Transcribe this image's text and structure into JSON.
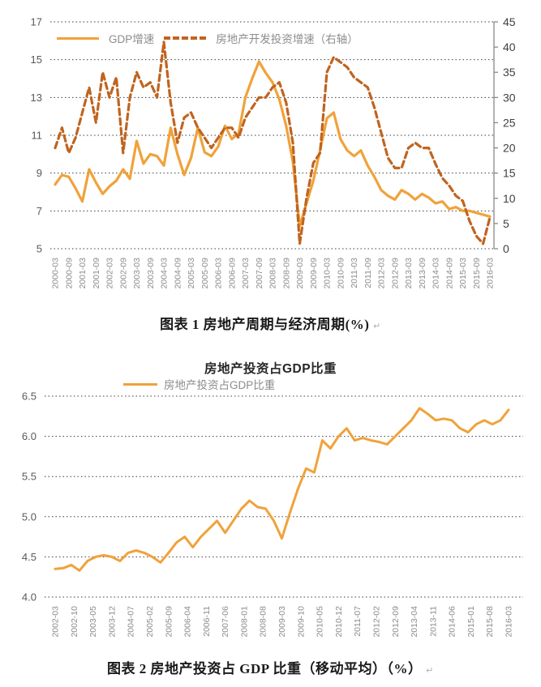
{
  "meta": {
    "return_mark": "↵"
  },
  "colors": {
    "gdp_line": "#F0A23A",
    "investment_line": "#C0641F",
    "grid": "#3d3d3d",
    "axis_text": "#595959",
    "x_tick_text": "#8c8c8c",
    "right_axis_text": "#404040",
    "legend_text": "#8c8c8c",
    "caption_text": "#1a1a1a",
    "background": "#ffffff"
  },
  "chart_data": [
    {
      "type": "line",
      "caption": "图表 1 房地产周期与经济周期(%)",
      "legend_position": "top-left-inside",
      "grid": "dashed-horizontal",
      "left_axis": {
        "min": 5,
        "max": 17,
        "ticks": [
          17,
          15,
          13,
          11,
          9,
          7,
          5
        ]
      },
      "right_axis": {
        "min": 0,
        "max": 45,
        "ticks": [
          45,
          40,
          35,
          30,
          25,
          20,
          15,
          10,
          5,
          0
        ]
      },
      "x_labels": [
        "2000-03",
        "2000-09",
        "2001-03",
        "2001-09",
        "2002-03",
        "2002-09",
        "2003-03",
        "2003-09",
        "2004-03",
        "2004-09",
        "2005-03",
        "2005-09",
        "2006-03",
        "2006-09",
        "2007-03",
        "2007-09",
        "2008-03",
        "2008-09",
        "2009-03",
        "2009-09",
        "2010-03",
        "2010-09",
        "2011-03",
        "2011-09",
        "2012-03",
        "2012-09",
        "2013-03",
        "2013-09",
        "2014-03",
        "2014-09",
        "2015-03",
        "2015-09",
        "2016-03"
      ],
      "x_label_step": 2,
      "series": [
        {
          "name": "GDP增速",
          "slug": "gdp-growth-line",
          "axis": "left",
          "style": "solid",
          "color": "#F0A23A",
          "values": [
            8.4,
            8.9,
            8.8,
            8.2,
            7.5,
            9.2,
            8.5,
            7.9,
            8.3,
            8.6,
            9.2,
            8.7,
            10.7,
            9.5,
            10.0,
            9.9,
            9.4,
            11.4,
            10.0,
            8.9,
            9.8,
            11.4,
            10.1,
            9.9,
            10.4,
            11.5,
            10.8,
            11.1,
            13.0,
            14.0,
            14.9,
            14.3,
            13.8,
            12.9,
            11.5,
            9.6,
            6.2,
            7.4,
            8.6,
            10.2,
            11.9,
            12.2,
            10.8,
            10.2,
            9.9,
            10.2,
            9.4,
            8.8,
            8.1,
            7.8,
            7.6,
            8.1,
            7.9,
            7.6,
            7.9,
            7.7,
            7.4,
            7.5,
            7.1,
            7.2,
            7.0,
            7.0,
            6.9,
            6.8,
            6.7
          ]
        },
        {
          "name": "房地产开发投资增速（右轴）",
          "slug": "real-estate-investment-growth-line",
          "axis": "right",
          "style": "dashed",
          "color": "#C0641F",
          "values": [
            20,
            24,
            19,
            22,
            27,
            32,
            25,
            35,
            30,
            34,
            19,
            30,
            35,
            32,
            33,
            30,
            41,
            29,
            21,
            26,
            27,
            24,
            22,
            20,
            22,
            24,
            24,
            22,
            26,
            28,
            30,
            30,
            32,
            33,
            29,
            21,
            1,
            10,
            17,
            19,
            35,
            38,
            37,
            36,
            34,
            33,
            32,
            28,
            23,
            18,
            16,
            16,
            20,
            21,
            20,
            20,
            16.8,
            14,
            12.5,
            10.5,
            9.5,
            5.5,
            2.5,
            1,
            6.2
          ]
        }
      ]
    },
    {
      "type": "line",
      "title": "房地产投资占GDP比重",
      "caption": "图表 2 房地产投资占 GDP 比重（移动平均）（%）",
      "legend_position": "top-inside",
      "grid": "dashed-horizontal",
      "y_axis": {
        "min": 4.0,
        "max": 6.5,
        "ticks": [
          6.5,
          6.0,
          5.5,
          5.0,
          4.5,
          4.0
        ],
        "decimals": 1
      },
      "x_labels": [
        "2002-03",
        "2002-10",
        "2003-05",
        "2003-12",
        "2004-07",
        "2005-02",
        "2005-09",
        "2006-04",
        "2006-11",
        "2007-06",
        "2008-01",
        "2008-08",
        "2009-03",
        "2009-10",
        "2010-05",
        "2010-12",
        "2011-07",
        "2012-02",
        "2012-09",
        "2013-04",
        "2013-11",
        "2014-06",
        "2015-01",
        "2015-08",
        "2016-03"
      ],
      "series": [
        {
          "name": "房地产投资占GDP比重",
          "slug": "investment-gdp-share-line",
          "axis": "left",
          "style": "solid",
          "color": "#F0A23A",
          "values": [
            4.35,
            4.36,
            4.4,
            4.33,
            4.45,
            4.5,
            4.52,
            4.5,
            4.45,
            4.55,
            4.58,
            4.55,
            4.5,
            4.43,
            4.55,
            4.68,
            4.75,
            4.62,
            4.75,
            4.85,
            4.95,
            4.8,
            4.95,
            5.1,
            5.2,
            5.12,
            5.1,
            4.95,
            4.73,
            5.05,
            5.35,
            5.6,
            5.55,
            5.95,
            5.85,
            6.0,
            6.1,
            5.95,
            5.98,
            5.95,
            5.93,
            5.9,
            6.0,
            6.1,
            6.2,
            6.35,
            6.28,
            6.2,
            6.22,
            6.2,
            6.1,
            6.05,
            6.15,
            6.2,
            6.15,
            6.2,
            6.33
          ]
        }
      ]
    }
  ]
}
